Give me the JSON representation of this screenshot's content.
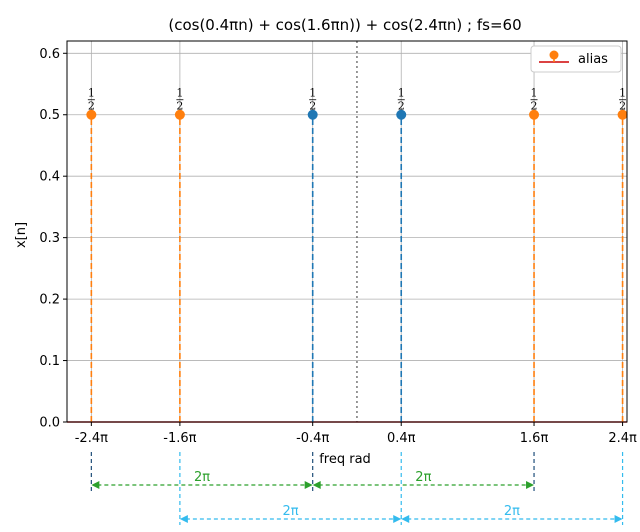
{
  "chart_data": {
    "type": "stem",
    "title": "(cos(0.4πn) + cos(1.6πn)) + cos(2.4πn)  ; fs=60",
    "xlabel": "freq rad",
    "ylabel": "x[n]",
    "ylim": [
      0,
      0.62
    ],
    "yticks": [
      0.0,
      0.1,
      0.2,
      0.3,
      0.4,
      0.5,
      0.6
    ],
    "ytick_labels": [
      "0.0",
      "0.1",
      "0.2",
      "0.3",
      "0.4",
      "0.5",
      "0.6"
    ],
    "xlim": [
      -2.62,
      2.44
    ],
    "xticks": [
      -2.4,
      -1.6,
      -0.4,
      0.4,
      1.6,
      2.4
    ],
    "xtick_labels": [
      "-2.4π",
      "-1.6π",
      "-0.4π",
      "0.4π",
      "1.6π",
      "2.4π"
    ],
    "grid": true,
    "center_line_x": 0,
    "legend": {
      "position": "top-right",
      "entries": [
        {
          "label": "alias",
          "color": "#ff7f0e"
        }
      ]
    },
    "colors": {
      "original": "#1f77b4",
      "alias": "#ff7f0e",
      "baseline": "#d62728"
    },
    "series": [
      {
        "kind": "original",
        "x": [
          -0.4,
          0.4
        ],
        "values": [
          0.5,
          0.5
        ],
        "labels": [
          "1/2",
          "1/2"
        ]
      },
      {
        "kind": "alias",
        "name": "alias",
        "x": [
          -2.4,
          -1.6,
          1.6,
          2.4
        ],
        "values": [
          0.5,
          0.5,
          0.5,
          0.5
        ],
        "labels": [
          "1/2",
          "1/2",
          "1/2",
          "1/2"
        ]
      }
    ],
    "annotations": [
      {
        "from": -2.4,
        "to": -0.4,
        "label": "2π",
        "color": "#2ca02c",
        "row": 1
      },
      {
        "from": -0.4,
        "to": 1.6,
        "label": "2π",
        "color": "#2ca02c",
        "row": 1
      },
      {
        "from": -1.6,
        "to": 0.4,
        "label": "2π",
        "color": "#33bbee",
        "row": 2
      },
      {
        "from": 0.4,
        "to": 2.4,
        "label": "2π",
        "color": "#33bbee",
        "row": 2
      }
    ]
  }
}
